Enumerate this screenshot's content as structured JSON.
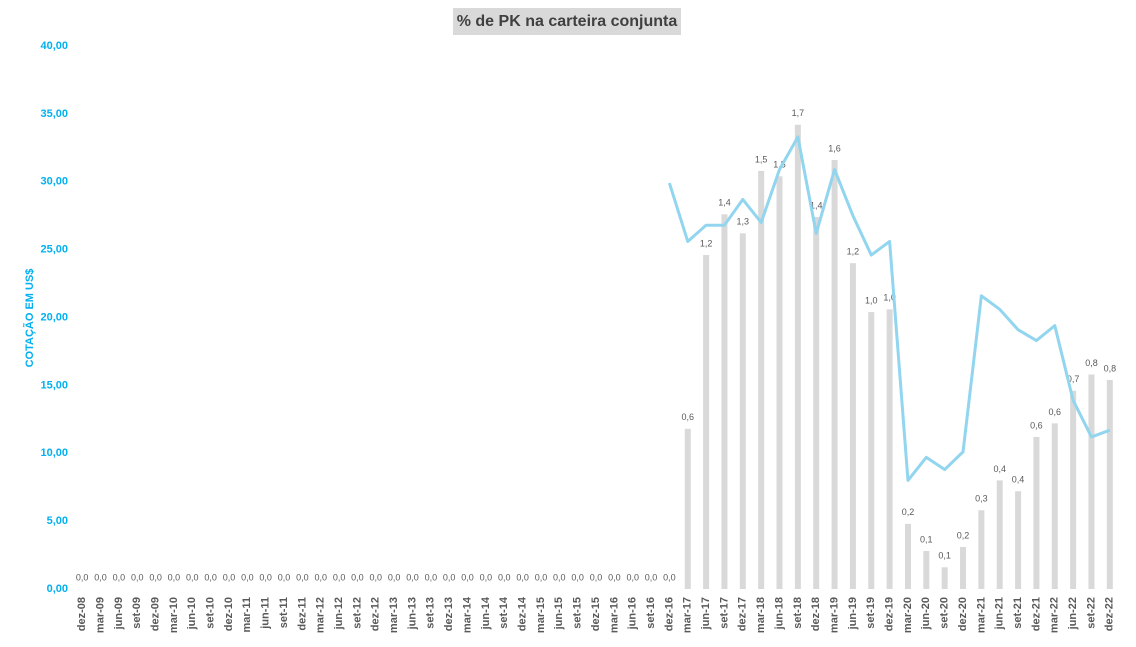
{
  "chart_data": {
    "type": "bar_line",
    "title": "% de PK na carteira conjunta",
    "y_axis_label": "COTAÇÃO EM US$",
    "categories": [
      "dez-08",
      "mar-09",
      "jun-09",
      "set-09",
      "dez-09",
      "mar-10",
      "jun-10",
      "set-10",
      "dez-10",
      "mar-11",
      "jun-11",
      "set-11",
      "dez-11",
      "mar-12",
      "jun-12",
      "set-12",
      "dez-12",
      "mar-13",
      "jun-13",
      "set-13",
      "dez-13",
      "mar-14",
      "jun-14",
      "set-14",
      "dez-14",
      "mar-15",
      "jun-15",
      "set-15",
      "dez-15",
      "mar-16",
      "jun-16",
      "set-16",
      "dez-16",
      "mar-17",
      "jun-17",
      "set-17",
      "dez-17",
      "mar-18",
      "jun-18",
      "set-18",
      "dez-18",
      "mar-19",
      "jun-19",
      "set-19",
      "dez-19",
      "mar-20",
      "jun-20",
      "set-20",
      "dez-20",
      "mar-21",
      "jun-21",
      "set-21",
      "dez-21",
      "mar-22",
      "jun-22",
      "set-22",
      "dez-22"
    ],
    "ylim": [
      0,
      40
    ],
    "yticks": [
      {
        "value": 0,
        "label": "0,00"
      },
      {
        "value": 5,
        "label": "5,00"
      },
      {
        "value": 10,
        "label": "10,00"
      },
      {
        "value": 15,
        "label": "15,00"
      },
      {
        "value": 20,
        "label": "20,00"
      },
      {
        "value": 25,
        "label": "25,00"
      },
      {
        "value": 30,
        "label": "30,00"
      },
      {
        "value": 35,
        "label": "35,00"
      },
      {
        "value": 40,
        "label": "40,00"
      }
    ],
    "y2lim": [
      0,
      2
    ],
    "series": [
      {
        "kind": "bar",
        "axis": "y2",
        "color": "#d9d9d9",
        "values": [
          0,
          0,
          0,
          0,
          0,
          0,
          0,
          0,
          0,
          0,
          0,
          0,
          0,
          0,
          0,
          0,
          0,
          0,
          0,
          0,
          0,
          0,
          0,
          0,
          0,
          0,
          0,
          0,
          0,
          0,
          0,
          0,
          0,
          0.59,
          1.23,
          1.38,
          1.31,
          1.54,
          1.52,
          1.71,
          1.37,
          1.58,
          1.2,
          1.02,
          1.03,
          0.24,
          0.14,
          0.08,
          0.155,
          0.29,
          0.4,
          0.36,
          0.56,
          0.61,
          0.73,
          0.79,
          0.77
        ],
        "value_labels": [
          "0,0",
          "0,0",
          "0,0",
          "0,0",
          "0,0",
          "0,0",
          "0,0",
          "0,0",
          "0,0",
          "0,0",
          "0,0",
          "0,0",
          "0,0",
          "0,0",
          "0,0",
          "0,0",
          "0,0",
          "0,0",
          "0,0",
          "0,0",
          "0,0",
          "0,0",
          "0,0",
          "0,0",
          "0,0",
          "0,0",
          "0,0",
          "0,0",
          "0,0",
          "0,0",
          "0,0",
          "0,0",
          "0,0",
          "0,6",
          "1,2",
          "1,4",
          "1,3",
          "1,5",
          "1,5",
          "1,7",
          "1,4",
          "1,6",
          "1,2",
          "1,0",
          "1,0",
          "0,2",
          "0,1",
          "0,1",
          "0,2",
          "0,3",
          "0,4",
          "0,4",
          "0,6",
          "0,6",
          "0,7",
          "0,8",
          "0,8"
        ]
      },
      {
        "kind": "line",
        "axis": "y",
        "color": "#92d5ef",
        "values": [
          null,
          null,
          null,
          null,
          null,
          null,
          null,
          null,
          null,
          null,
          null,
          null,
          null,
          null,
          null,
          null,
          null,
          null,
          null,
          null,
          null,
          null,
          null,
          null,
          null,
          null,
          null,
          null,
          null,
          null,
          null,
          null,
          29.9,
          25.6,
          26.8,
          26.8,
          28.7,
          27.0,
          30.9,
          33.3,
          26.2,
          30.9,
          27.5,
          24.6,
          25.6,
          8.0,
          9.7,
          8.8,
          10.1,
          21.6,
          20.6,
          19.1,
          18.3,
          19.4,
          13.9,
          11.2,
          11.7
        ]
      }
    ]
  }
}
